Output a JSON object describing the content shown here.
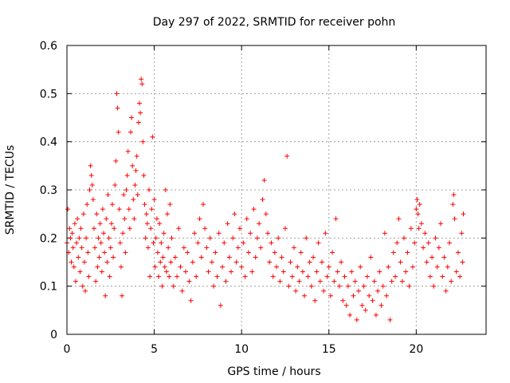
{
  "chart_data": {
    "type": "scatter",
    "title": "Day 297 of 2022, SRMTID for receiver pohn",
    "xlabel": "GPS time / hours",
    "ylabel": "SRMTID / TECUs",
    "xlim": [
      0,
      24
    ],
    "ylim": [
      0,
      0.6
    ],
    "x_ticks": [
      0,
      5,
      10,
      15,
      20
    ],
    "x_tick_labels": [
      "0",
      "5",
      "10",
      "15",
      "20"
    ],
    "y_ticks": [
      0,
      0.1,
      0.2,
      0.3,
      0.4,
      0.5,
      0.6
    ],
    "y_tick_labels": [
      "0",
      "0.1",
      "0.2",
      "0.3",
      "0.4",
      "0.5",
      "0.6"
    ],
    "grid": true,
    "marker": "plus",
    "series": [
      {
        "name": "SRMTID",
        "color": "#ff0000",
        "points": [
          [
            0.0,
            0.19
          ],
          [
            0.05,
            0.26
          ],
          [
            0.1,
            0.17
          ],
          [
            0.15,
            0.22
          ],
          [
            0.2,
            0.2
          ],
          [
            0.25,
            0.15
          ],
          [
            0.3,
            0.21
          ],
          [
            0.35,
            0.18
          ],
          [
            0.4,
            0.14
          ],
          [
            0.45,
            0.23
          ],
          [
            0.5,
            0.11
          ],
          [
            0.55,
            0.19
          ],
          [
            0.6,
            0.24
          ],
          [
            0.65,
            0.16
          ],
          [
            0.7,
            0.2
          ],
          [
            0.75,
            0.13
          ],
          [
            0.8,
            0.22
          ],
          [
            0.85,
            0.18
          ],
          [
            0.9,
            0.1
          ],
          [
            0.95,
            0.25
          ],
          [
            1.0,
            0.15
          ],
          [
            1.05,
            0.09
          ],
          [
            1.1,
            0.2
          ],
          [
            1.15,
            0.27
          ],
          [
            1.2,
            0.17
          ],
          [
            1.25,
            0.12
          ],
          [
            1.3,
            0.3
          ],
          [
            1.35,
            0.35
          ],
          [
            1.4,
            0.33
          ],
          [
            1.45,
            0.31
          ],
          [
            1.5,
            0.28
          ],
          [
            1.55,
            0.22
          ],
          [
            1.6,
            0.18
          ],
          [
            1.65,
            0.11
          ],
          [
            1.7,
            0.25
          ],
          [
            1.75,
            0.14
          ],
          [
            1.8,
            0.2
          ],
          [
            1.85,
            0.16
          ],
          [
            1.9,
            0.23
          ],
          [
            1.95,
            0.19
          ],
          [
            2.0,
            0.13
          ],
          [
            2.05,
            0.26
          ],
          [
            2.1,
            0.21
          ],
          [
            2.15,
            0.17
          ],
          [
            2.2,
            0.08
          ],
          [
            2.25,
            0.24
          ],
          [
            2.3,
            0.15
          ],
          [
            2.35,
            0.29
          ],
          [
            2.4,
            0.2
          ],
          [
            2.45,
            0.12
          ],
          [
            2.5,
            0.18
          ],
          [
            2.55,
            0.23
          ],
          [
            2.6,
            0.27
          ],
          [
            2.65,
            0.16
          ],
          [
            2.7,
            0.22
          ],
          [
            2.75,
            0.31
          ],
          [
            2.8,
            0.36
          ],
          [
            2.85,
            0.5
          ],
          [
            2.9,
            0.47
          ],
          [
            2.95,
            0.42
          ],
          [
            3.0,
            0.26
          ],
          [
            3.05,
            0.19
          ],
          [
            3.1,
            0.14
          ],
          [
            3.15,
            0.08
          ],
          [
            3.2,
            0.21
          ],
          [
            3.25,
            0.29
          ],
          [
            3.3,
            0.24
          ],
          [
            3.35,
            0.17
          ],
          [
            3.4,
            0.3
          ],
          [
            3.45,
            0.33
          ],
          [
            3.5,
            0.38
          ],
          [
            3.55,
            0.26
          ],
          [
            3.6,
            0.22
          ],
          [
            3.65,
            0.42
          ],
          [
            3.7,
            0.45
          ],
          [
            3.75,
            0.35
          ],
          [
            3.8,
            0.28
          ],
          [
            3.85,
            0.24
          ],
          [
            3.9,
            0.31
          ],
          [
            3.95,
            0.34
          ],
          [
            4.0,
            0.37
          ],
          [
            4.05,
            0.29
          ],
          [
            4.1,
            0.44
          ],
          [
            4.15,
            0.48
          ],
          [
            4.2,
            0.46
          ],
          [
            4.25,
            0.53
          ],
          [
            4.3,
            0.52
          ],
          [
            4.35,
            0.4
          ],
          [
            4.4,
            0.33
          ],
          [
            4.45,
            0.27
          ],
          [
            4.5,
            0.2
          ],
          [
            4.55,
            0.25
          ],
          [
            4.6,
            0.23
          ],
          [
            4.65,
            0.18
          ],
          [
            4.7,
            0.3
          ],
          [
            4.75,
            0.12
          ],
          [
            4.8,
            0.22
          ],
          [
            4.85,
            0.26
          ],
          [
            4.9,
            0.41
          ],
          [
            4.95,
            0.19
          ],
          [
            5.0,
            0.28
          ],
          [
            5.05,
            0.14
          ],
          [
            5.1,
            0.2
          ],
          [
            5.15,
            0.24
          ],
          [
            5.2,
            0.17
          ],
          [
            5.25,
            0.12
          ],
          [
            5.3,
            0.23
          ],
          [
            5.35,
            0.15
          ],
          [
            5.4,
            0.19
          ],
          [
            5.45,
            0.1
          ],
          [
            5.5,
            0.16
          ],
          [
            5.55,
            0.21
          ],
          [
            5.6,
            0.14
          ],
          [
            5.65,
            0.3
          ],
          [
            5.7,
            0.13
          ],
          [
            5.75,
            0.25
          ],
          [
            5.8,
            0.18
          ],
          [
            5.85,
            0.12
          ],
          [
            5.9,
            0.27
          ],
          [
            5.95,
            0.15
          ],
          [
            6.0,
            0.2
          ],
          [
            6.1,
            0.1
          ],
          [
            6.2,
            0.16
          ],
          [
            6.3,
            0.12
          ],
          [
            6.4,
            0.22
          ],
          [
            6.5,
            0.14
          ],
          [
            6.6,
            0.09
          ],
          [
            6.7,
            0.18
          ],
          [
            6.8,
            0.13
          ],
          [
            6.9,
            0.17
          ],
          [
            7.0,
            0.11
          ],
          [
            7.1,
            0.07
          ],
          [
            7.2,
            0.15
          ],
          [
            7.3,
            0.21
          ],
          [
            7.4,
            0.12
          ],
          [
            7.5,
            0.19
          ],
          [
            7.6,
            0.24
          ],
          [
            7.7,
            0.16
          ],
          [
            7.8,
            0.27
          ],
          [
            7.9,
            0.22
          ],
          [
            8.0,
            0.18
          ],
          [
            8.1,
            0.13
          ],
          [
            8.2,
            0.2
          ],
          [
            8.3,
            0.15
          ],
          [
            8.4,
            0.1
          ],
          [
            8.5,
            0.17
          ],
          [
            8.6,
            0.12
          ],
          [
            8.7,
            0.21
          ],
          [
            8.8,
            0.06
          ],
          [
            8.9,
            0.14
          ],
          [
            9.0,
            0.19
          ],
          [
            9.1,
            0.11
          ],
          [
            9.2,
            0.23
          ],
          [
            9.3,
            0.16
          ],
          [
            9.4,
            0.13
          ],
          [
            9.5,
            0.2
          ],
          [
            9.6,
            0.25
          ],
          [
            9.7,
            0.15
          ],
          [
            9.8,
            0.18
          ],
          [
            9.9,
            0.22
          ],
          [
            10.0,
            0.14
          ],
          [
            10.1,
            0.19
          ],
          [
            10.2,
            0.12
          ],
          [
            10.3,
            0.24
          ],
          [
            10.4,
            0.17
          ],
          [
            10.5,
            0.21
          ],
          [
            10.6,
            0.13
          ],
          [
            10.7,
            0.26
          ],
          [
            10.8,
            0.16
          ],
          [
            10.9,
            0.2
          ],
          [
            11.0,
            0.23
          ],
          [
            11.1,
            0.18
          ],
          [
            11.2,
            0.28
          ],
          [
            11.3,
            0.32
          ],
          [
            11.4,
            0.25
          ],
          [
            11.5,
            0.21
          ],
          [
            11.6,
            0.15
          ],
          [
            11.7,
            0.19
          ],
          [
            11.8,
            0.12
          ],
          [
            11.9,
            0.17
          ],
          [
            12.0,
            0.14
          ],
          [
            12.1,
            0.2
          ],
          [
            12.2,
            0.11
          ],
          [
            12.3,
            0.16
          ],
          [
            12.4,
            0.13
          ],
          [
            12.5,
            0.22
          ],
          [
            12.6,
            0.37
          ],
          [
            12.7,
            0.1
          ],
          [
            12.8,
            0.15
          ],
          [
            12.9,
            0.12
          ],
          [
            13.0,
            0.18
          ],
          [
            13.1,
            0.09
          ],
          [
            13.2,
            0.14
          ],
          [
            13.3,
            0.11
          ],
          [
            13.4,
            0.17
          ],
          [
            13.5,
            0.13
          ],
          [
            13.6,
            0.08
          ],
          [
            13.7,
            0.2
          ],
          [
            13.8,
            0.12
          ],
          [
            13.9,
            0.15
          ],
          [
            14.0,
            0.1
          ],
          [
            14.1,
            0.16
          ],
          [
            14.2,
            0.07
          ],
          [
            14.3,
            0.13
          ],
          [
            14.4,
            0.19
          ],
          [
            14.5,
            0.11
          ],
          [
            14.6,
            0.15
          ],
          [
            14.7,
            0.09
          ],
          [
            14.8,
            0.21
          ],
          [
            14.9,
            0.12
          ],
          [
            15.0,
            0.14
          ],
          [
            15.1,
            0.08
          ],
          [
            15.2,
            0.17
          ],
          [
            15.3,
            0.11
          ],
          [
            15.4,
            0.24
          ],
          [
            15.5,
            0.13
          ],
          [
            15.6,
            0.1
          ],
          [
            15.7,
            0.15
          ],
          [
            15.8,
            0.07
          ],
          [
            15.9,
            0.12
          ],
          [
            16.0,
            0.06
          ],
          [
            16.1,
            0.1
          ],
          [
            16.2,
            0.04
          ],
          [
            16.3,
            0.13
          ],
          [
            16.4,
            0.08
          ],
          [
            16.5,
            0.11
          ],
          [
            16.6,
            0.03
          ],
          [
            16.7,
            0.09
          ],
          [
            16.8,
            0.14
          ],
          [
            16.9,
            0.06
          ],
          [
            17.0,
            0.1
          ],
          [
            17.1,
            0.05
          ],
          [
            17.2,
            0.12
          ],
          [
            17.3,
            0.08
          ],
          [
            17.4,
            0.16
          ],
          [
            17.5,
            0.07
          ],
          [
            17.6,
            0.11
          ],
          [
            17.7,
            0.04
          ],
          [
            17.8,
            0.09
          ],
          [
            17.9,
            0.13
          ],
          [
            18.0,
            0.06
          ],
          [
            18.1,
            0.1
          ],
          [
            18.2,
            0.21
          ],
          [
            18.3,
            0.08
          ],
          [
            18.4,
            0.14
          ],
          [
            18.5,
            0.03
          ],
          [
            18.6,
            0.11
          ],
          [
            18.7,
            0.17
          ],
          [
            18.8,
            0.12
          ],
          [
            18.9,
            0.19
          ],
          [
            19.0,
            0.24
          ],
          [
            19.1,
            0.15
          ],
          [
            19.2,
            0.11
          ],
          [
            19.3,
            0.2
          ],
          [
            19.4,
            0.13
          ],
          [
            19.5,
            0.17
          ],
          [
            19.6,
            0.1
          ],
          [
            19.7,
            0.22
          ],
          [
            19.8,
            0.14
          ],
          [
            19.9,
            0.19
          ],
          [
            20.0,
            0.26
          ],
          [
            20.05,
            0.28
          ],
          [
            20.1,
            0.25
          ],
          [
            20.15,
            0.22
          ],
          [
            20.2,
            0.27
          ],
          [
            20.3,
            0.23
          ],
          [
            20.4,
            0.18
          ],
          [
            20.5,
            0.21
          ],
          [
            20.6,
            0.15
          ],
          [
            20.7,
            0.19
          ],
          [
            20.8,
            0.12
          ],
          [
            20.9,
            0.16
          ],
          [
            21.0,
            0.1
          ],
          [
            21.1,
            0.2
          ],
          [
            21.2,
            0.14
          ],
          [
            21.3,
            0.18
          ],
          [
            21.4,
            0.23
          ],
          [
            21.5,
            0.12
          ],
          [
            21.6,
            0.16
          ],
          [
            21.7,
            0.09
          ],
          [
            21.8,
            0.14
          ],
          [
            21.9,
            0.19
          ],
          [
            22.0,
            0.11
          ],
          [
            22.1,
            0.27
          ],
          [
            22.15,
            0.29
          ],
          [
            22.2,
            0.24
          ],
          [
            22.3,
            0.13
          ],
          [
            22.4,
            0.17
          ],
          [
            22.5,
            0.12
          ],
          [
            22.6,
            0.21
          ],
          [
            22.65,
            0.15
          ],
          [
            22.7,
            0.25
          ]
        ]
      }
    ]
  }
}
